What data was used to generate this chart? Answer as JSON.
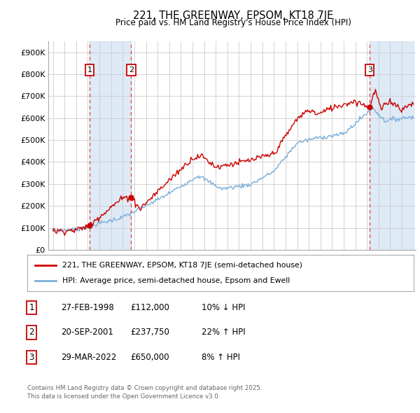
{
  "title": "221, THE GREENWAY, EPSOM, KT18 7JE",
  "subtitle": "Price paid vs. HM Land Registry's House Price Index (HPI)",
  "ylim": [
    0,
    950000
  ],
  "yticks": [
    0,
    100000,
    200000,
    300000,
    400000,
    500000,
    600000,
    700000,
    800000,
    900000
  ],
  "ytick_labels": [
    "£0",
    "£100K",
    "£200K",
    "£300K",
    "£400K",
    "£500K",
    "£600K",
    "£700K",
    "£800K",
    "£900K"
  ],
  "bg_color": "#ffffff",
  "plot_bg_color": "#ffffff",
  "grid_color": "#cccccc",
  "red_line_color": "#cc0000",
  "blue_line_color": "#7aaedc",
  "sale1_x": 1998.15,
  "sale1_price": 112000,
  "sale2_x": 2001.72,
  "sale2_price": 237750,
  "sale3_x": 2022.24,
  "sale3_price": 650000,
  "shade_color": "#c8ddf0",
  "dashed_color": "#dd4444",
  "legend_line1": "221, THE GREENWAY, EPSOM, KT18 7JE (semi-detached house)",
  "legend_line2": "HPI: Average price, semi-detached house, Epsom and Ewell",
  "rows": [
    [
      "1",
      "27-FEB-1998",
      "£112,000",
      "10% ↓ HPI"
    ],
    [
      "2",
      "20-SEP-2001",
      "£237,750",
      "22% ↑ HPI"
    ],
    [
      "3",
      "29-MAR-2022",
      "£650,000",
      "8% ↑ HPI"
    ]
  ],
  "footer1": "Contains HM Land Registry data © Crown copyright and database right 2025.",
  "footer2": "This data is licensed under the Open Government Licence v3.0."
}
